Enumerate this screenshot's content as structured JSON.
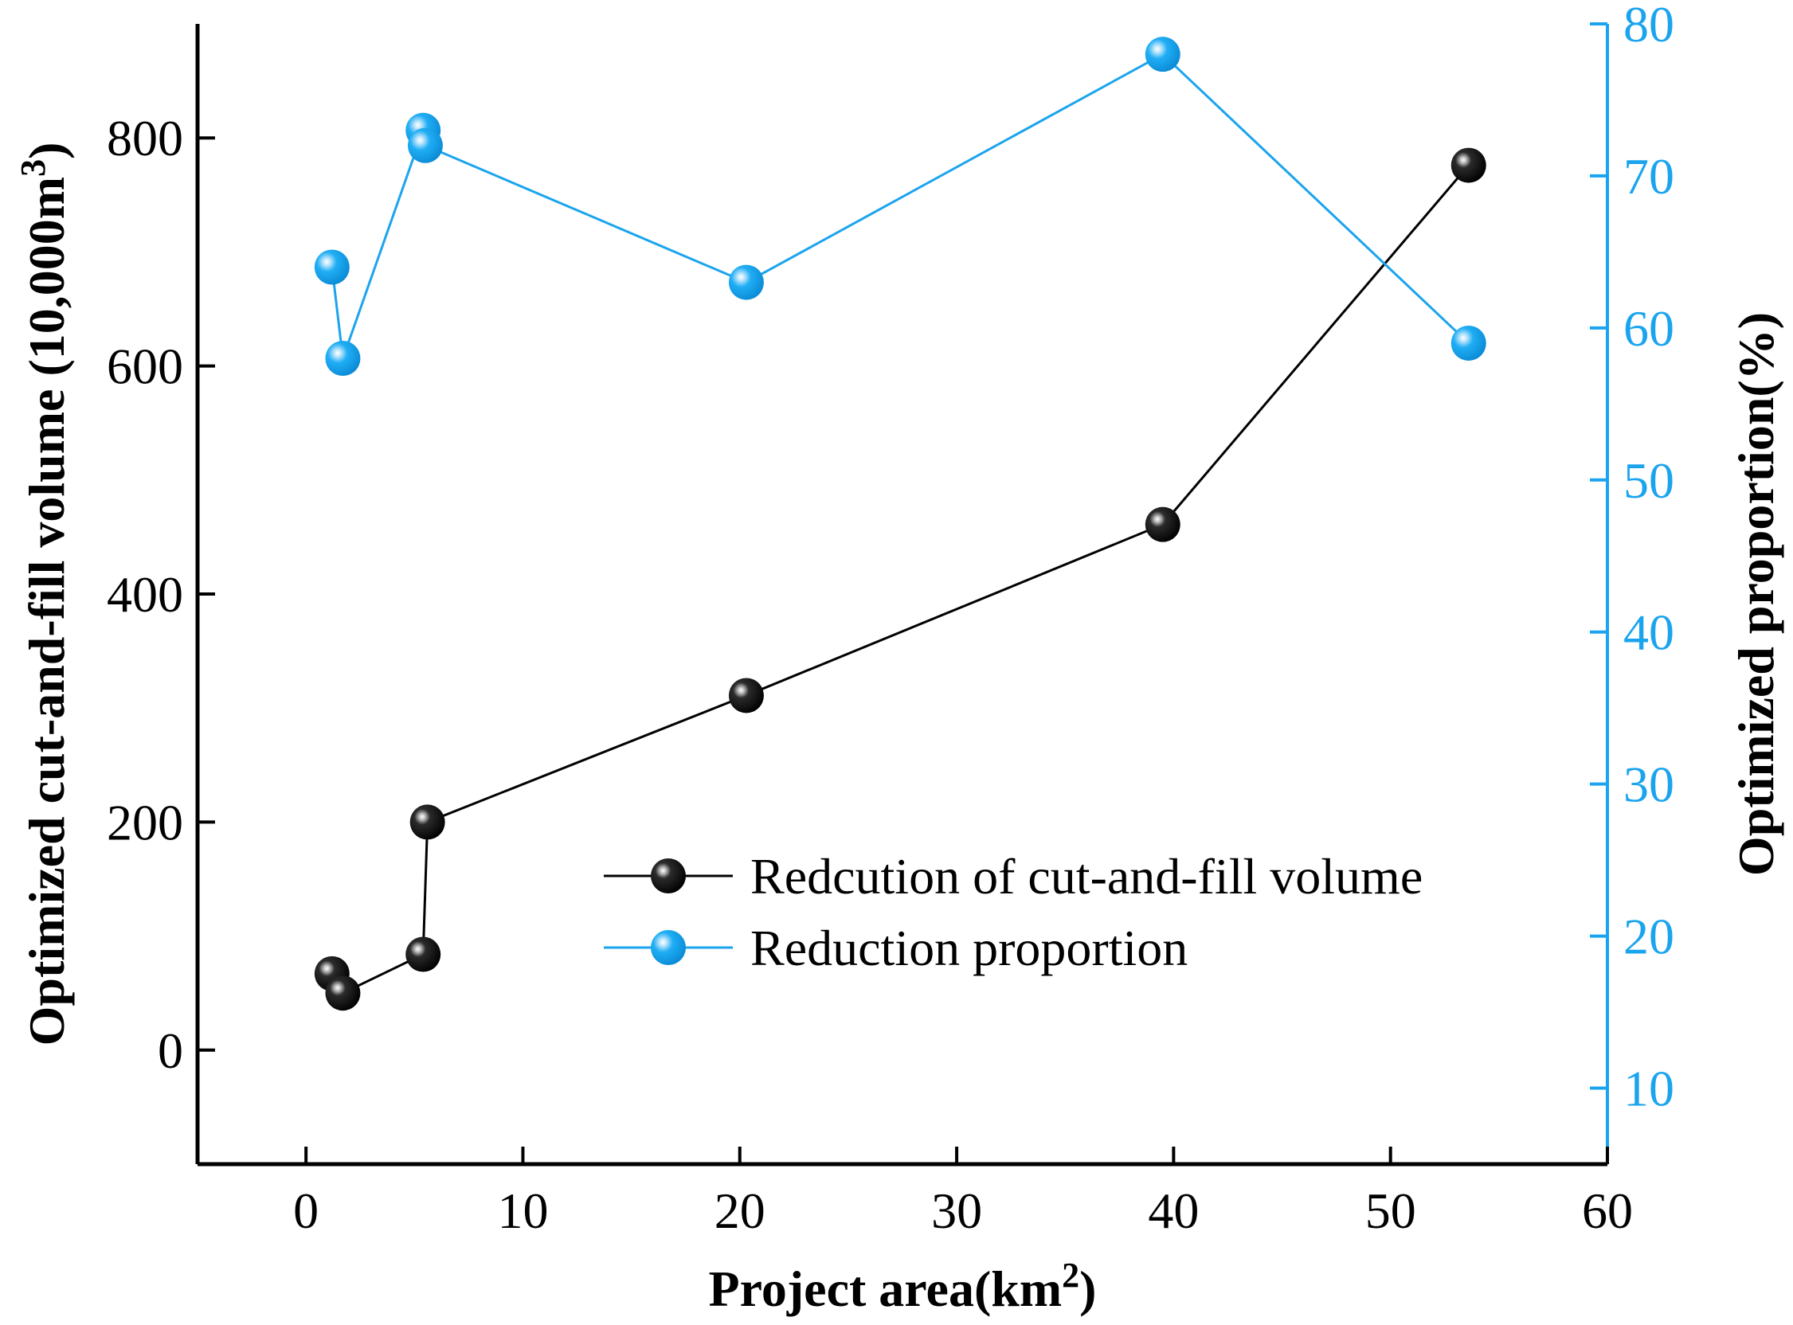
{
  "chart_data": {
    "type": "line",
    "x_axis": {
      "label": "Project area(km",
      "label_sup": "2",
      "label_end": ")",
      "range": [
        -5,
        60
      ],
      "ticks": [
        0,
        10,
        20,
        30,
        40,
        50,
        60
      ],
      "tick_labels": [
        "0",
        "10",
        "20",
        "30",
        "40",
        "50",
        "60"
      ]
    },
    "y_left_axis": {
      "label": "Optimized cut-and-fill volume (10,000m",
      "label_sup": "3",
      "label_end": ")",
      "range": [
        -100,
        900
      ],
      "ticks": [
        0,
        200,
        400,
        600,
        800
      ],
      "tick_labels": [
        "0",
        "200",
        "400",
        "600",
        "800"
      ]
    },
    "y_right_axis": {
      "label": "Optimized proportion(%)",
      "range": [
        5,
        80
      ],
      "ticks": [
        10,
        20,
        30,
        40,
        50,
        60,
        70,
        80
      ],
      "tick_labels": [
        "10",
        "20",
        "30",
        "40",
        "50",
        "60",
        "70",
        "80"
      ],
      "color": "#1ba4ee"
    },
    "series": [
      {
        "name": "Redcution of cut-and-fill volume",
        "axis": "left",
        "color": "#000000",
        "x": [
          1.2,
          1.7,
          5.4,
          5.6,
          20.3,
          39.5,
          53.6
        ],
        "y": [
          67,
          50,
          84,
          200,
          311,
          461,
          776
        ]
      },
      {
        "name": "Reduction proportion",
        "axis": "right",
        "color": "#1ba4ee",
        "x": [
          1.2,
          1.7,
          5.4,
          5.5,
          20.3,
          39.5,
          53.6
        ],
        "y": [
          64,
          58,
          73,
          72,
          63,
          78,
          59
        ]
      }
    ],
    "legend": {
      "position": "lower-center",
      "entries": [
        "Redcution of cut-and-fill volume",
        "Reduction proportion"
      ]
    }
  }
}
